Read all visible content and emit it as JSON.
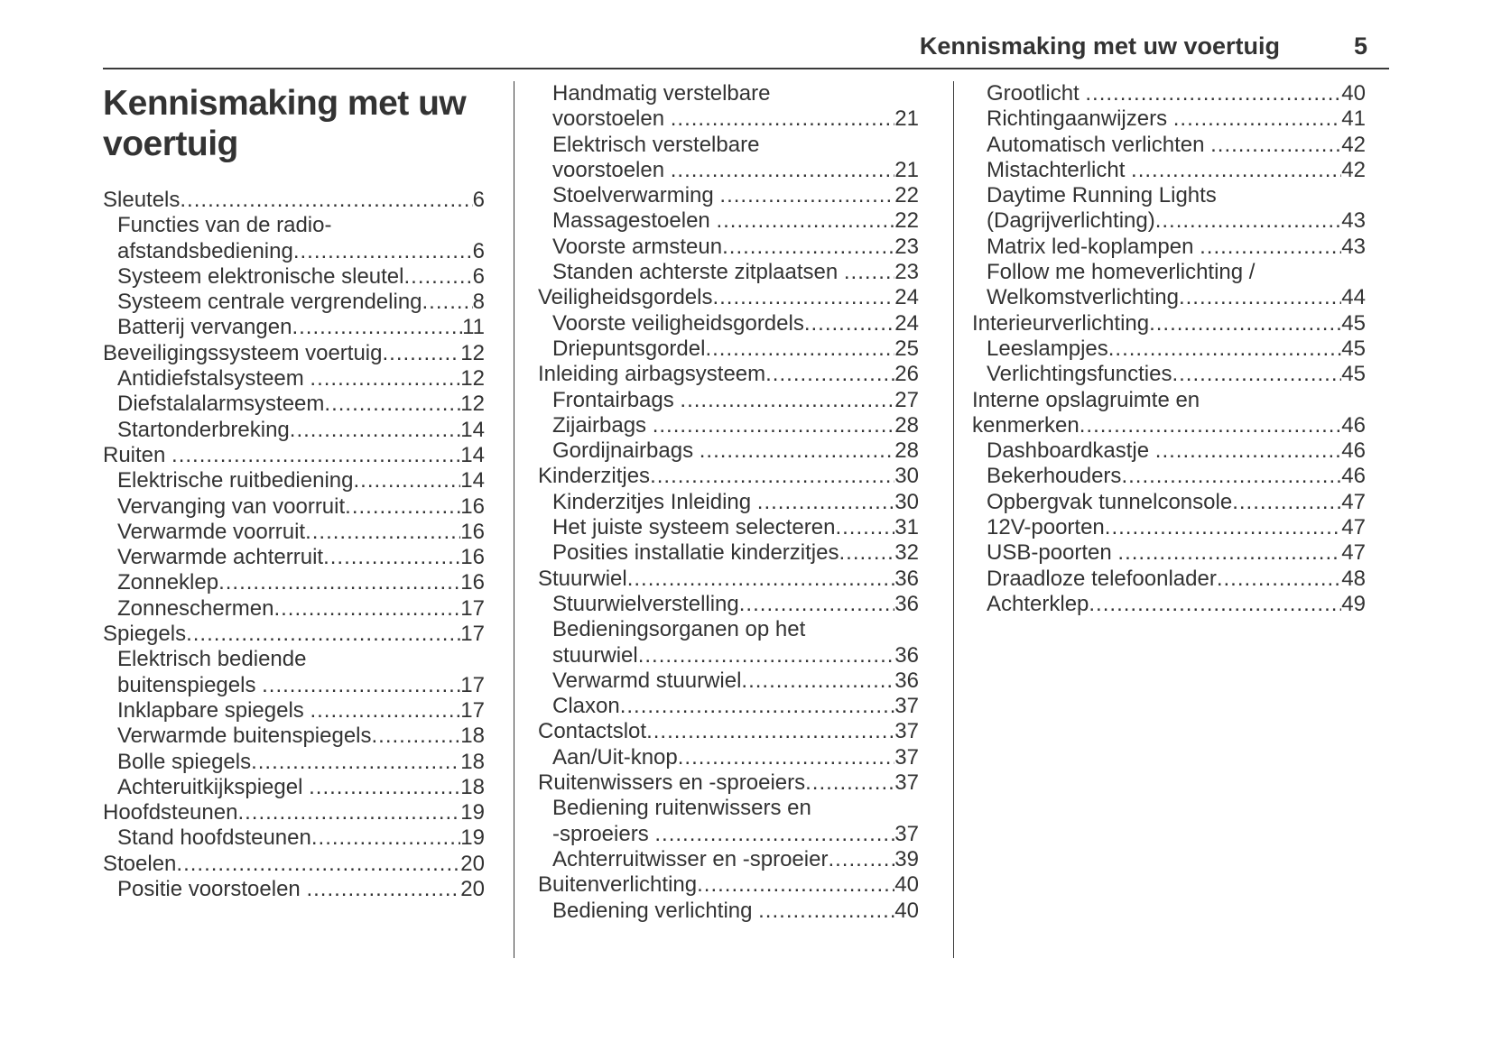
{
  "header": {
    "section_title": "Kennismaking met uw voertuig",
    "page_number": "5"
  },
  "column1": {
    "heading": "Kennismaking met uw voertuig",
    "entries": [
      {
        "indent": 0,
        "lines": [
          "Sleutels"
        ],
        "page": "6"
      },
      {
        "indent": 1,
        "lines": [
          "Functies van de radio-",
          "afstandsbediening"
        ],
        "page": "6"
      },
      {
        "indent": 1,
        "lines": [
          "Systeem elektronische sleutel"
        ],
        "page": "6"
      },
      {
        "indent": 1,
        "lines": [
          "Systeem centrale vergrendeling"
        ],
        "page": "8"
      },
      {
        "indent": 1,
        "lines": [
          "Batterij vervangen"
        ],
        "page": "11"
      },
      {
        "indent": 0,
        "lines": [
          "Beveiligingssysteem voertuig"
        ],
        "page": "12"
      },
      {
        "indent": 1,
        "lines": [
          "Antidiefstalsysteem "
        ],
        "page": "12"
      },
      {
        "indent": 1,
        "lines": [
          "Diefstalalarmsysteem"
        ],
        "page": "12"
      },
      {
        "indent": 1,
        "lines": [
          "Startonderbreking"
        ],
        "page": "14"
      },
      {
        "indent": 0,
        "lines": [
          "Ruiten "
        ],
        "page": "14"
      },
      {
        "indent": 1,
        "lines": [
          "Elektrische ruitbediening"
        ],
        "page": "14"
      },
      {
        "indent": 1,
        "lines": [
          "Vervanging van voorruit"
        ],
        "page": "16"
      },
      {
        "indent": 1,
        "lines": [
          "Verwarmde voorruit"
        ],
        "page": "16"
      },
      {
        "indent": 1,
        "lines": [
          "Verwarmde achterruit"
        ],
        "page": "16"
      },
      {
        "indent": 1,
        "lines": [
          "Zonneklep"
        ],
        "page": "16"
      },
      {
        "indent": 1,
        "lines": [
          "Zonneschermen"
        ],
        "page": "17"
      },
      {
        "indent": 0,
        "lines": [
          "Spiegels"
        ],
        "page": "17"
      },
      {
        "indent": 1,
        "lines": [
          "Elektrisch bediende",
          "buitenspiegels "
        ],
        "page": "17"
      },
      {
        "indent": 1,
        "lines": [
          "Inklapbare spiegels "
        ],
        "page": "17"
      },
      {
        "indent": 1,
        "lines": [
          "Verwarmde buitenspiegels"
        ],
        "page": "18"
      },
      {
        "indent": 1,
        "lines": [
          "Bolle spiegels"
        ],
        "page": "18"
      },
      {
        "indent": 1,
        "lines": [
          "Achteruitkijkspiegel "
        ],
        "page": "18"
      },
      {
        "indent": 0,
        "lines": [
          "Hoofdsteunen"
        ],
        "page": "19"
      },
      {
        "indent": 1,
        "lines": [
          "Stand hoofdsteunen"
        ],
        "page": "19"
      },
      {
        "indent": 0,
        "lines": [
          "Stoelen"
        ],
        "page": "20"
      },
      {
        "indent": 1,
        "lines": [
          "Positie voorstoelen "
        ],
        "page": "20"
      }
    ]
  },
  "column2": {
    "entries": [
      {
        "indent": 1,
        "lines": [
          "Handmatig verstelbare",
          "voorstoelen "
        ],
        "page": "21"
      },
      {
        "indent": 1,
        "lines": [
          "Elektrisch verstelbare",
          "voorstoelen "
        ],
        "page": "21"
      },
      {
        "indent": 1,
        "lines": [
          "Stoelverwarming "
        ],
        "page": "22"
      },
      {
        "indent": 1,
        "lines": [
          "Massagestoelen "
        ],
        "page": "22"
      },
      {
        "indent": 1,
        "lines": [
          "Voorste armsteun"
        ],
        "page": "23"
      },
      {
        "indent": 1,
        "lines": [
          "Standen achterste zitplaatsen "
        ],
        "page": "23"
      },
      {
        "indent": 0,
        "lines": [
          "Veiligheidsgordels"
        ],
        "page": "24"
      },
      {
        "indent": 1,
        "lines": [
          "Voorste veiligheidsgordels"
        ],
        "page": "24"
      },
      {
        "indent": 1,
        "lines": [
          "Driepuntsgordel"
        ],
        "page": "25"
      },
      {
        "indent": 0,
        "lines": [
          "Inleiding airbagsysteem"
        ],
        "page": "26"
      },
      {
        "indent": 1,
        "lines": [
          "Frontairbags "
        ],
        "page": "27"
      },
      {
        "indent": 1,
        "lines": [
          "Zijairbags "
        ],
        "page": "28"
      },
      {
        "indent": 1,
        "lines": [
          "Gordijnairbags "
        ],
        "page": "28"
      },
      {
        "indent": 0,
        "lines": [
          "Kinderzitjes"
        ],
        "page": "30"
      },
      {
        "indent": 1,
        "lines": [
          "Kinderzitjes Inleiding "
        ],
        "page": "30"
      },
      {
        "indent": 1,
        "lines": [
          "Het juiste systeem selecteren"
        ],
        "page": "31"
      },
      {
        "indent": 1,
        "lines": [
          "Posities installatie kinderzitjes"
        ],
        "page": "32"
      },
      {
        "indent": 0,
        "lines": [
          "Stuurwiel"
        ],
        "page": "36"
      },
      {
        "indent": 1,
        "lines": [
          "Stuurwielverstelling"
        ],
        "page": "36"
      },
      {
        "indent": 1,
        "lines": [
          "Bedieningsorganen op het",
          "stuurwiel"
        ],
        "page": "36"
      },
      {
        "indent": 1,
        "lines": [
          "Verwarmd stuurwiel"
        ],
        "page": "36"
      },
      {
        "indent": 1,
        "lines": [
          "Claxon"
        ],
        "page": "37"
      },
      {
        "indent": 0,
        "lines": [
          "Contactslot"
        ],
        "page": "37"
      },
      {
        "indent": 1,
        "lines": [
          "Aan/Uit-knop"
        ],
        "page": "37"
      },
      {
        "indent": 0,
        "lines": [
          "Ruitenwissers en -sproeiers"
        ],
        "page": "37"
      },
      {
        "indent": 1,
        "lines": [
          "Bediening ruitenwissers en",
          "-sproeiers "
        ],
        "page": "37"
      },
      {
        "indent": 1,
        "lines": [
          "Achterruitwisser en -sproeier"
        ],
        "page": "39"
      },
      {
        "indent": 0,
        "lines": [
          "Buitenverlichting"
        ],
        "page": "40"
      },
      {
        "indent": 1,
        "lines": [
          "Bediening verlichting "
        ],
        "page": "40"
      }
    ]
  },
  "column3": {
    "entries": [
      {
        "indent": 1,
        "lines": [
          "Grootlicht "
        ],
        "page": "40"
      },
      {
        "indent": 1,
        "lines": [
          "Richtingaanwijzers "
        ],
        "page": "41"
      },
      {
        "indent": 1,
        "lines": [
          "Automatisch verlichten "
        ],
        "page": "42"
      },
      {
        "indent": 1,
        "lines": [
          "Mistachterlicht "
        ],
        "page": "42"
      },
      {
        "indent": 1,
        "lines": [
          "Daytime Running Lights",
          "(Dagrijverlichting)"
        ],
        "page": "43"
      },
      {
        "indent": 1,
        "lines": [
          "Matrix led-koplampen "
        ],
        "page": "43"
      },
      {
        "indent": 1,
        "lines": [
          "Follow me homeverlichting /",
          "Welkomstverlichting"
        ],
        "page": "44"
      },
      {
        "indent": 0,
        "lines": [
          "Interieurverlichting"
        ],
        "page": "45"
      },
      {
        "indent": 1,
        "lines": [
          "Leeslampjes"
        ],
        "page": "45"
      },
      {
        "indent": 1,
        "lines": [
          "Verlichtingsfuncties"
        ],
        "page": "45"
      },
      {
        "indent": 0,
        "lines": [
          "Interne opslagruimte en",
          "kenmerken"
        ],
        "page": "46"
      },
      {
        "indent": 1,
        "lines": [
          "Dashboardkastje "
        ],
        "page": "46"
      },
      {
        "indent": 1,
        "lines": [
          "Bekerhouders"
        ],
        "page": "46"
      },
      {
        "indent": 1,
        "lines": [
          "Opbergvak tunnelconsole"
        ],
        "page": "47"
      },
      {
        "indent": 1,
        "lines": [
          "12V-poorten"
        ],
        "page": "47"
      },
      {
        "indent": 1,
        "lines": [
          "USB-poorten "
        ],
        "page": "47"
      },
      {
        "indent": 1,
        "lines": [
          "Draadloze telefoonlader"
        ],
        "page": "48"
      },
      {
        "indent": 1,
        "lines": [
          "Achterklep"
        ],
        "page": "49"
      }
    ]
  },
  "colors": {
    "text": "#333333",
    "rule": "#3a3a3a",
    "background": "#ffffff"
  }
}
